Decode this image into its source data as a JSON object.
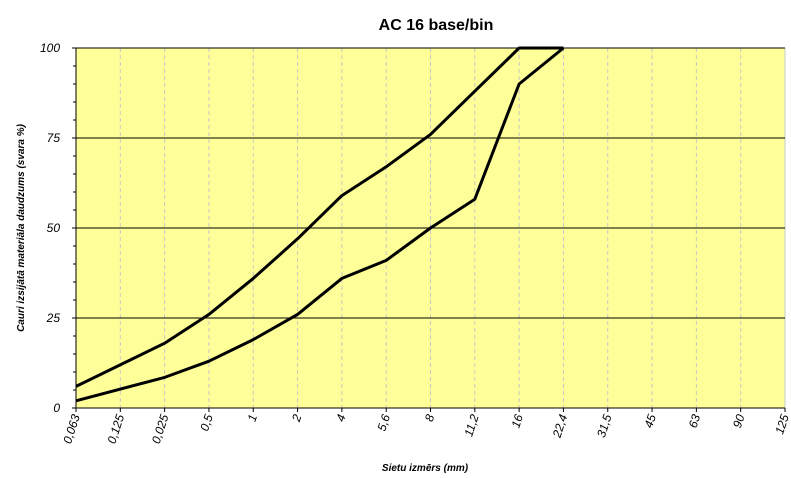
{
  "chart_data": {
    "type": "line",
    "title": "AC 16 base/bin",
    "xlabel": "Sietu izmērs (mm)",
    "ylabel": "Cauri izsijātā materiāla daudzums (svara %)",
    "categories": [
      "0,063",
      "0,125",
      "0,025",
      "0,5",
      "1",
      "2",
      "4",
      "5,6",
      "8",
      "11,2",
      "16",
      "22,4",
      "31,5",
      "45",
      "63",
      "90",
      "125"
    ],
    "ylim": [
      0,
      100
    ],
    "yticks": [
      0,
      25,
      50,
      75,
      100
    ],
    "series": [
      {
        "points": [
          [
            0,
            6
          ],
          [
            2,
            18
          ],
          [
            3,
            26
          ],
          [
            4,
            36
          ],
          [
            5,
            47
          ],
          [
            6,
            59
          ],
          [
            7,
            67
          ],
          [
            8,
            76
          ],
          [
            9,
            88
          ],
          [
            10,
            100
          ],
          [
            11,
            100
          ]
        ]
      },
      {
        "points": [
          [
            0,
            2
          ],
          [
            2,
            8.5
          ],
          [
            3,
            13
          ],
          [
            4,
            19
          ],
          [
            5,
            26
          ],
          [
            6,
            36
          ],
          [
            7,
            41
          ],
          [
            8,
            50
          ],
          [
            9,
            58
          ],
          [
            10,
            90
          ],
          [
            11,
            100
          ]
        ]
      }
    ],
    "grid": "horizontal solid, vertical dashed",
    "colors": {
      "plot_bg": "#ffff99",
      "grid_major": "#000000",
      "grid_minor": "#c8c8c8",
      "line": "#000000"
    }
  }
}
